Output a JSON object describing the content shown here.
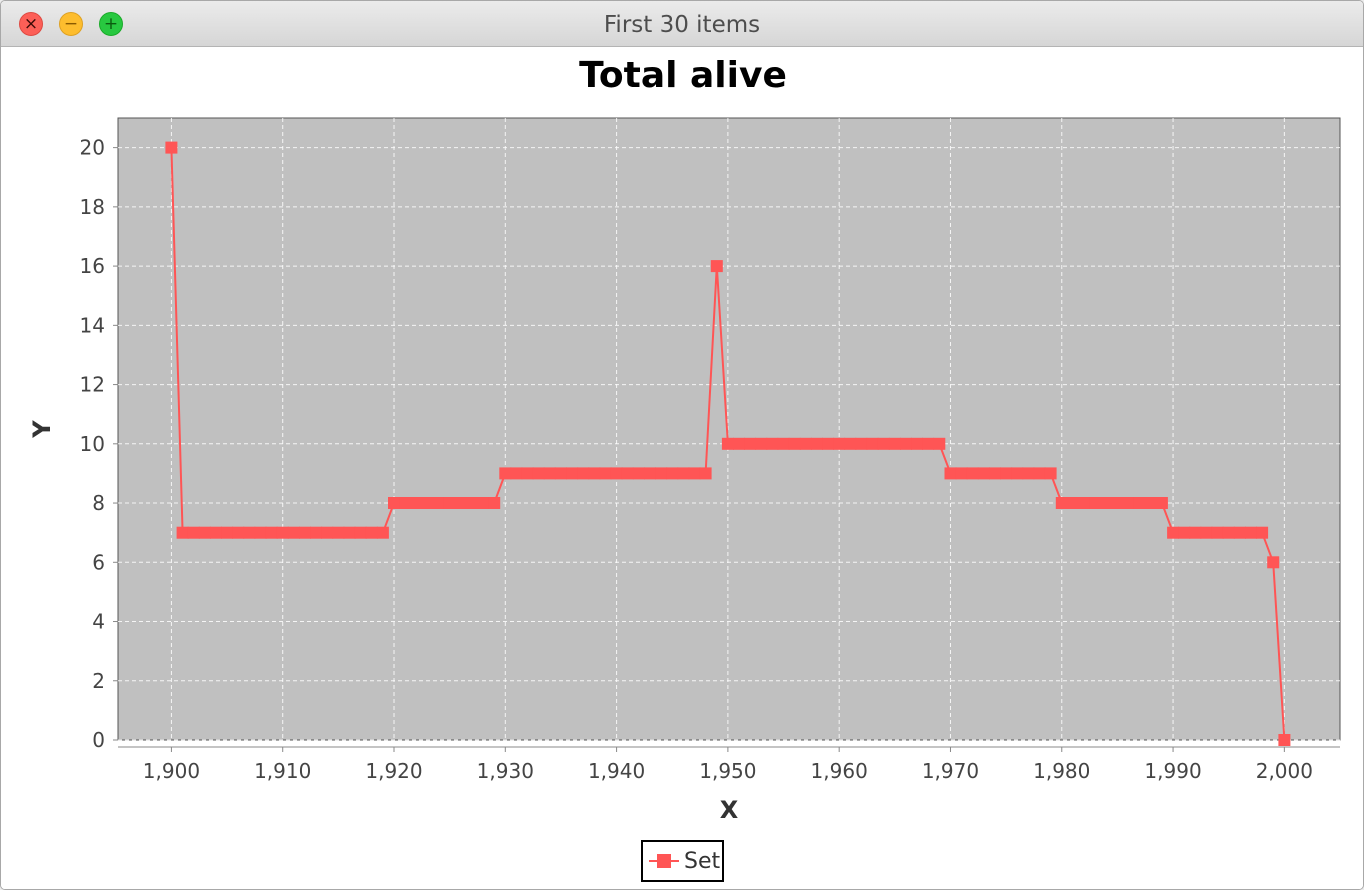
{
  "window": {
    "title": "First 30 items",
    "controls": {
      "close": "×",
      "minimize": "−",
      "maximize": "+"
    }
  },
  "colors": {
    "series": "#ff5555",
    "plot_background": "#c0c0c0",
    "gridline": "#ffffff"
  },
  "chart_data": {
    "type": "line",
    "title": "Total alive",
    "xlabel": "X",
    "ylabel": "Y",
    "xlim": [
      1895.2,
      2005
    ],
    "ylim": [
      0,
      21
    ],
    "xticks": [
      1900,
      1910,
      1920,
      1930,
      1940,
      1950,
      1960,
      1970,
      1980,
      1990,
      2000
    ],
    "xtick_labels": [
      "1,900",
      "1,910",
      "1,920",
      "1,930",
      "1,940",
      "1,950",
      "1,960",
      "1,970",
      "1,980",
      "1,990",
      "2,000"
    ],
    "yticks": [
      0,
      2,
      4,
      6,
      8,
      10,
      12,
      14,
      16,
      18,
      20
    ],
    "ytick_labels": [
      "0",
      "2",
      "4",
      "6",
      "8",
      "10",
      "12",
      "14",
      "16",
      "18",
      "20"
    ],
    "grid": true,
    "legend_position": "bottom-center",
    "series": [
      {
        "name": "Set",
        "marker": "square",
        "x": [
          1900,
          1901,
          1902,
          1903,
          1904,
          1905,
          1906,
          1907,
          1908,
          1909,
          1910,
          1911,
          1912,
          1913,
          1914,
          1915,
          1916,
          1917,
          1918,
          1919,
          1920,
          1921,
          1922,
          1923,
          1924,
          1925,
          1926,
          1927,
          1928,
          1929,
          1930,
          1931,
          1932,
          1933,
          1934,
          1935,
          1936,
          1937,
          1938,
          1939,
          1940,
          1941,
          1942,
          1943,
          1944,
          1945,
          1946,
          1947,
          1948,
          1949,
          1950,
          1951,
          1952,
          1953,
          1954,
          1955,
          1956,
          1957,
          1958,
          1959,
          1960,
          1961,
          1962,
          1963,
          1964,
          1965,
          1966,
          1967,
          1968,
          1969,
          1970,
          1971,
          1972,
          1973,
          1974,
          1975,
          1976,
          1977,
          1978,
          1979,
          1980,
          1981,
          1982,
          1983,
          1984,
          1985,
          1986,
          1987,
          1988,
          1989,
          1990,
          1991,
          1992,
          1993,
          1994,
          1995,
          1996,
          1997,
          1998,
          1999,
          2000
        ],
        "y": [
          20,
          7,
          7,
          7,
          7,
          7,
          7,
          7,
          7,
          7,
          7,
          7,
          7,
          7,
          7,
          7,
          7,
          7,
          7,
          7,
          8,
          8,
          8,
          8,
          8,
          8,
          8,
          8,
          8,
          8,
          9,
          9,
          9,
          9,
          9,
          9,
          9,
          9,
          9,
          9,
          9,
          9,
          9,
          9,
          9,
          9,
          9,
          9,
          9,
          16,
          10,
          10,
          10,
          10,
          10,
          10,
          10,
          10,
          10,
          10,
          10,
          10,
          10,
          10,
          10,
          10,
          10,
          10,
          10,
          10,
          9,
          9,
          9,
          9,
          9,
          9,
          9,
          9,
          9,
          9,
          8,
          8,
          8,
          8,
          8,
          8,
          8,
          8,
          8,
          8,
          7,
          7,
          7,
          7,
          7,
          7,
          7,
          7,
          7,
          6,
          0
        ]
      }
    ]
  }
}
